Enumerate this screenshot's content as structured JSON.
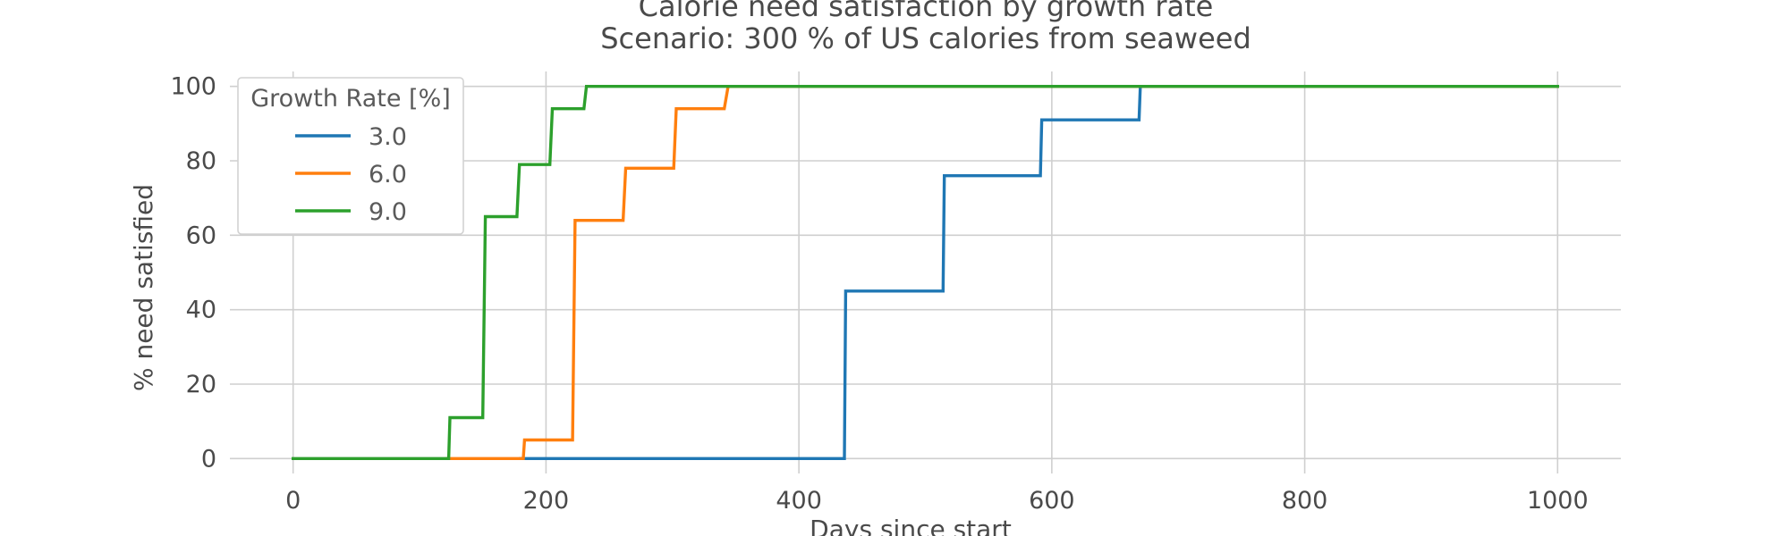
{
  "chart_data": {
    "type": "line",
    "title": "Calorie need satisfaction by growth rate",
    "subtitle": "Scenario: 300 % of US calories from seaweed",
    "xlabel": "Days since start",
    "ylabel": "% need satisfied",
    "xlim": [
      -50,
      1050
    ],
    "ylim": [
      -4,
      104
    ],
    "xticks": [
      0,
      200,
      400,
      600,
      800,
      1000
    ],
    "yticks": [
      0,
      20,
      40,
      60,
      80,
      100
    ],
    "grid": true,
    "legend": {
      "title": "Growth Rate [%]",
      "placement": "top-left"
    },
    "series": [
      {
        "name": "3.0",
        "color": "#1f77b4",
        "points": [
          [
            180,
            0
          ],
          [
            436,
            0
          ],
          [
            437,
            45
          ],
          [
            514,
            45
          ],
          [
            515,
            76
          ],
          [
            591,
            76
          ],
          [
            592,
            91
          ],
          [
            669,
            91
          ],
          [
            670,
            100
          ],
          [
            1000,
            100
          ]
        ]
      },
      {
        "name": "6.0",
        "color": "#ff7f0e",
        "points": [
          [
            122,
            0
          ],
          [
            182,
            0
          ],
          [
            183,
            5
          ],
          [
            221,
            5
          ],
          [
            223,
            64
          ],
          [
            261,
            64
          ],
          [
            263,
            78
          ],
          [
            301,
            78
          ],
          [
            303,
            94
          ],
          [
            341,
            94
          ],
          [
            344,
            100
          ],
          [
            1000,
            100
          ]
        ]
      },
      {
        "name": "9.0",
        "color": "#2ca02c",
        "points": [
          [
            0,
            0
          ],
          [
            123,
            0
          ],
          [
            124,
            11
          ],
          [
            150,
            11
          ],
          [
            152,
            65
          ],
          [
            177,
            65
          ],
          [
            179,
            79
          ],
          [
            203,
            79
          ],
          [
            205,
            94
          ],
          [
            230,
            94
          ],
          [
            232,
            100
          ],
          [
            1000,
            100
          ]
        ]
      }
    ]
  }
}
